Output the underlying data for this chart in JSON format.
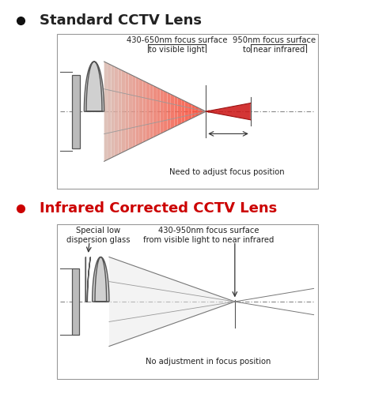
{
  "bg_color": "#ffffff",
  "title1": "Standard CCTV Lens",
  "title2": "Infrared Corrected CCTV Lens",
  "title1_color": "#222222",
  "title2_color": "#cc0000",
  "bullet_color1": "#111111",
  "bullet_color2": "#cc0000",
  "panel_border_color": "#999999",
  "lens_face_color": "#d0d0d0",
  "lens_edge_color": "#555555",
  "mount_face_color": "#bbbbbb",
  "mount_edge_color": "#555555",
  "axis_color": "#888888",
  "ray_gray": "#aaaaaa",
  "ray_pink": "#e8b0a0",
  "ray_red": "#cc2222",
  "focus_line_color": "#555555",
  "arrow_color": "#333333",
  "label_color": "#222222",
  "label1": "430-650nm focus surface\nto visible light",
  "label2": "950nm focus surface\nto near infrared",
  "label3": "Need to adjust focus position",
  "label4": "Special low\ndispersion glass",
  "label5": "430-950nm focus surface\nfrom visible light to near infrared",
  "label6": "No adjustment in focus position"
}
